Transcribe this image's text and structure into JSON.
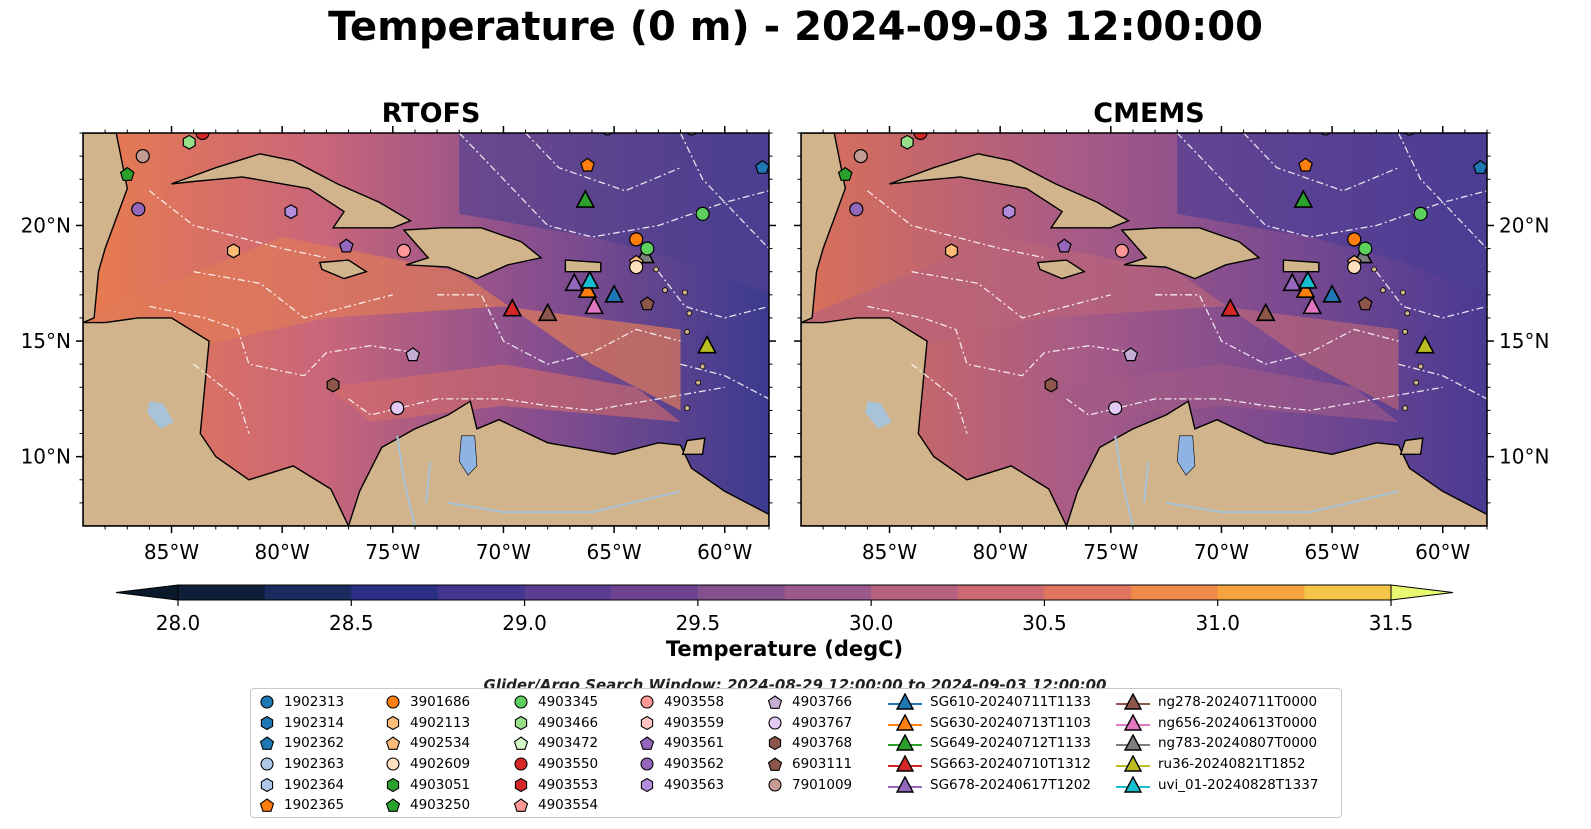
{
  "title": "Temperature (0 m) - 2024-09-03 12:00:00",
  "panels": [
    {
      "title": "RTOFS"
    },
    {
      "title": "CMEMS"
    }
  ],
  "map": {
    "lon_range": [
      -89,
      -58
    ],
    "lat_range": [
      7,
      24
    ],
    "lon_ticks": [
      "85°W",
      "80°W",
      "75°W",
      "70°W",
      "65°W",
      "60°W"
    ],
    "lat_ticks": [
      "20°N",
      "15°N",
      "10°N"
    ],
    "colors": {
      "land": "#d2b48c",
      "water_feature": "#a8c3d8",
      "lake": "#8fb4e3",
      "ocean_warm": "#e97c4e",
      "ocean_mid": "#8a4f8e",
      "ocean_cool": "#3b3a8f",
      "ocean_cold": "#0f1f3a"
    }
  },
  "colorbar": {
    "title": "Temperature (degC)",
    "min": 28.0,
    "max": 31.5,
    "ticks": [
      "28.0",
      "28.5",
      "29.0",
      "29.5",
      "30.0",
      "30.5",
      "31.0",
      "31.5"
    ],
    "colors": [
      "#0f1f3a",
      "#1a2b5e",
      "#2b2f86",
      "#44368f",
      "#5a3d93",
      "#6e4490",
      "#85508e",
      "#9a598a",
      "#b56180",
      "#cc6a72",
      "#e0755f",
      "#ee8a4a",
      "#f5a341",
      "#f4c548"
    ],
    "over_color": "#e8f870",
    "under_color": "#0a1a2a"
  },
  "legend": {
    "title": "Glider/Argo Search Window: 2024-08-29 12:00:00 to 2024-09-03 12:00:00",
    "columns": [
      [
        {
          "label": "1902313",
          "marker": "circle",
          "color": "#1f77b4"
        },
        {
          "label": "1902314",
          "marker": "hexagon",
          "color": "#1f77b4"
        },
        {
          "label": "1902362",
          "marker": "pentagon",
          "color": "#1f77b4"
        },
        {
          "label": "1902363",
          "marker": "circle",
          "color": "#aec7e8"
        },
        {
          "label": "1902364",
          "marker": "hexagon",
          "color": "#aec7e8"
        },
        {
          "label": "1902365",
          "marker": "pentagon",
          "color": "#ff7f0e"
        }
      ],
      [
        {
          "label": "3901686",
          "marker": "circle",
          "color": "#ff7f0e"
        },
        {
          "label": "4902113",
          "marker": "hexagon",
          "color": "#ffbb78"
        },
        {
          "label": "4902534",
          "marker": "pentagon",
          "color": "#ffbb78"
        },
        {
          "label": "4902609",
          "marker": "circle",
          "color": "#ffe0bf"
        },
        {
          "label": "4903051",
          "marker": "hexagon",
          "color": "#2ca02c"
        },
        {
          "label": "4903250",
          "marker": "pentagon",
          "color": "#2ca02c"
        }
      ],
      [
        {
          "label": "4903345",
          "marker": "circle",
          "color": "#5ccf5c"
        },
        {
          "label": "4903466",
          "marker": "hexagon",
          "color": "#98df8a"
        },
        {
          "label": "4903472",
          "marker": "pentagon",
          "color": "#d4f7c8"
        },
        {
          "label": "4903550",
          "marker": "circle",
          "color": "#d62728"
        },
        {
          "label": "4903553",
          "marker": "hexagon",
          "color": "#d62728"
        },
        {
          "label": "4903554",
          "marker": "pentagon",
          "color": "#ff9896"
        }
      ],
      [
        {
          "label": "4903558",
          "marker": "circle",
          "color": "#ff9896"
        },
        {
          "label": "4903559",
          "marker": "hexagon",
          "color": "#ffc4c2"
        },
        {
          "label": "4903561",
          "marker": "pentagon",
          "color": "#9467bd"
        },
        {
          "label": "4903562",
          "marker": "circle",
          "color": "#9467bd"
        },
        {
          "label": "4903563",
          "marker": "hexagon",
          "color": "#b28ddb"
        }
      ],
      [
        {
          "label": "4903766",
          "marker": "pentagon",
          "color": "#c5b0d5"
        },
        {
          "label": "4903767",
          "marker": "circle",
          "color": "#e3c9f5"
        },
        {
          "label": "4903768",
          "marker": "hexagon",
          "color": "#8c564b"
        },
        {
          "label": "6903111",
          "marker": "pentagon",
          "color": "#8c564b"
        },
        {
          "label": "7901009",
          "marker": "circle",
          "color": "#c49c94"
        }
      ],
      [
        {
          "label": "SG610-20240711T1133",
          "marker": "triangle-line",
          "color": "#1f77b4"
        },
        {
          "label": "SG630-20240713T1103",
          "marker": "triangle-line",
          "color": "#ff7f0e"
        },
        {
          "label": "SG649-20240712T1133",
          "marker": "triangle-line",
          "color": "#2ca02c"
        },
        {
          "label": "SG663-20240710T1312",
          "marker": "triangle-line",
          "color": "#d62728"
        },
        {
          "label": "SG678-20240617T1202",
          "marker": "triangle-line",
          "color": "#9467bd"
        }
      ],
      [
        {
          "label": "ng278-20240711T0000",
          "marker": "triangle-line",
          "color": "#8c564b"
        },
        {
          "label": "ng656-20240613T0000",
          "marker": "triangle-line",
          "color": "#e377c2"
        },
        {
          "label": "ng783-20240807T0000",
          "marker": "triangle-line",
          "color": "#7f7f7f"
        },
        {
          "label": "ru36-20240821T1852",
          "marker": "triangle-line",
          "color": "#bcbd22"
        },
        {
          "label": "uvi_01-20240828T1337",
          "marker": "triangle-line",
          "color": "#17becf"
        }
      ]
    ]
  },
  "platforms": [
    {
      "id": "SG610-20240711T1133",
      "marker": "triangle",
      "color": "#1f77b4",
      "lon": -65.0,
      "lat": 17.0
    },
    {
      "id": "SG630-20240713T1103",
      "marker": "triangle",
      "color": "#ff7f0e",
      "lon": -66.2,
      "lat": 17.2
    },
    {
      "id": "SG649-20240712T1133",
      "marker": "triangle",
      "color": "#2ca02c",
      "lon": -66.3,
      "lat": 21.1
    },
    {
      "id": "SG663-20240710T1312",
      "marker": "triangle",
      "color": "#d62728",
      "lon": -69.6,
      "lat": 16.4
    },
    {
      "id": "SG678-20240617T1202",
      "marker": "triangle",
      "color": "#9467bd",
      "lon": -66.8,
      "lat": 17.5
    },
    {
      "id": "ng278-20240711T0000",
      "marker": "triangle",
      "color": "#8c564b",
      "lon": -68.0,
      "lat": 16.2
    },
    {
      "id": "ng656-20240613T0000",
      "marker": "triangle",
      "color": "#e377c2",
      "lon": -65.9,
      "lat": 16.5
    },
    {
      "id": "ng783-20240807T0000",
      "marker": "triangle",
      "color": "#7f7f7f",
      "lon": -63.6,
      "lat": 18.7
    },
    {
      "id": "ru36-20240821T1852",
      "marker": "triangle",
      "color": "#bcbd22",
      "lon": -60.8,
      "lat": 14.8
    },
    {
      "id": "uvi_01-20240828T1337",
      "marker": "triangle",
      "color": "#17becf",
      "lon": -66.1,
      "lat": 17.6
    },
    {
      "id": "1902362",
      "marker": "pentagon",
      "color": "#1f77b4",
      "lon": -58.3,
      "lat": 22.5
    },
    {
      "id": "1902363",
      "marker": "circle",
      "color": "#aec7e8",
      "lon": -65.3,
      "lat": 24.2
    },
    {
      "id": "1902363b",
      "marker": "circle",
      "color": "#aec7e8",
      "lon": -61.5,
      "lat": 24.2
    },
    {
      "id": "1902365",
      "marker": "pentagon",
      "color": "#ff7f0e",
      "lon": -66.2,
      "lat": 22.6
    },
    {
      "id": "1902314",
      "marker": "hexagon",
      "color": "#1f77b4",
      "lon": -57.5,
      "lat": 21.4
    },
    {
      "id": "3901686",
      "marker": "circle",
      "color": "#ff7f0e",
      "lon": -64.0,
      "lat": 19.4
    },
    {
      "id": "4902113",
      "marker": "hexagon",
      "color": "#ffbb78",
      "lon": -82.2,
      "lat": 18.9
    },
    {
      "id": "4902534",
      "marker": "pentagon",
      "color": "#ffbb78",
      "lon": -64.0,
      "lat": 18.4
    },
    {
      "id": "4902609",
      "marker": "circle",
      "color": "#ffe0bf",
      "lon": -64.0,
      "lat": 18.2
    },
    {
      "id": "4903250",
      "marker": "pentagon",
      "color": "#2ca02c",
      "lon": -87.0,
      "lat": 22.2
    },
    {
      "id": "4903345",
      "marker": "circle",
      "color": "#5ccf5c",
      "lon": -61.0,
      "lat": 20.5
    },
    {
      "id": "4903345b",
      "marker": "circle",
      "color": "#5ccf5c",
      "lon": -63.5,
      "lat": 19.0
    },
    {
      "id": "4903466",
      "marker": "hexagon",
      "color": "#98df8a",
      "lon": -84.2,
      "lat": 23.6
    },
    {
      "id": "4903550",
      "marker": "circle",
      "color": "#d62728",
      "lon": -83.6,
      "lat": 24.0
    },
    {
      "id": "4903558",
      "marker": "circle",
      "color": "#ff9896",
      "lon": -74.5,
      "lat": 18.9
    },
    {
      "id": "4903561",
      "marker": "pentagon",
      "color": "#9467bd",
      "lon": -77.1,
      "lat": 19.1
    },
    {
      "id": "4903562",
      "marker": "circle",
      "color": "#9467bd",
      "lon": -86.5,
      "lat": 20.7
    },
    {
      "id": "4903563",
      "marker": "hexagon",
      "color": "#b28ddb",
      "lon": -79.6,
      "lat": 20.6
    },
    {
      "id": "4903766",
      "marker": "pentagon",
      "color": "#c5b0d5",
      "lon": -74.1,
      "lat": 14.4
    },
    {
      "id": "4903767",
      "marker": "circle",
      "color": "#e3c9f5",
      "lon": -74.8,
      "lat": 12.1
    },
    {
      "id": "4903768",
      "marker": "hexagon",
      "color": "#8c564b",
      "lon": -77.7,
      "lat": 13.1
    },
    {
      "id": "6903111",
      "marker": "pentagon",
      "color": "#8c564b",
      "lon": -63.5,
      "lat": 16.6
    },
    {
      "id": "7901009",
      "marker": "circle",
      "color": "#c49c94",
      "lon": -86.3,
      "lat": 23.0
    }
  ]
}
